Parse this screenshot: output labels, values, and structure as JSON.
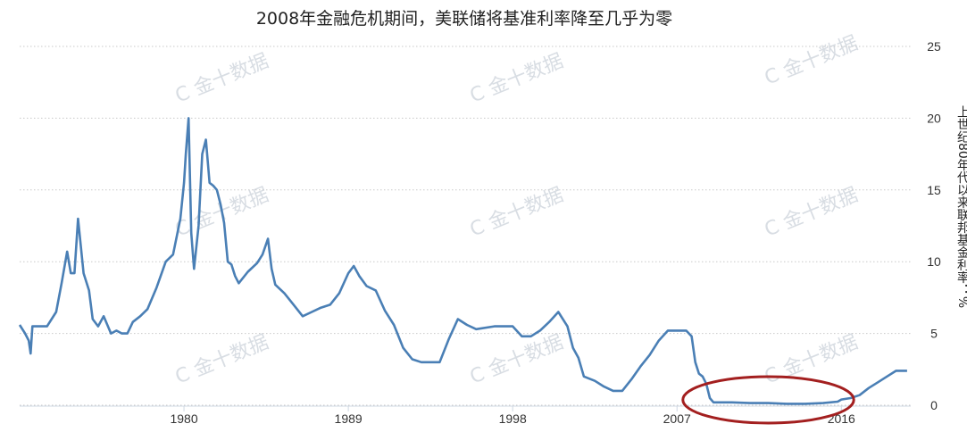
{
  "chart_data": {
    "type": "line",
    "title": "2008年金融危机期间，美联储将基准利率降至几乎为零",
    "ylabel": "上世纪80年代以来联邦基金利率：%",
    "xlabel": "",
    "ylim": [
      0,
      25
    ],
    "yticks": [
      "0",
      "5",
      "10",
      "15",
      "20",
      "25"
    ],
    "xticks": [
      "1980",
      "1989",
      "1998",
      "2007",
      "2016"
    ],
    "grid": "horizontal dotted",
    "line_color": "#4a7fb5",
    "highlight_color": "#a31f1f",
    "highlight_region": {
      "x": [
        2008.2,
        2015.8
      ],
      "y": 0.25
    },
    "watermark": "金十数据",
    "series": [
      {
        "x": [
          1971.0,
          1971.3,
          1971.5,
          1971.6,
          1971.7,
          1972.0,
          1972.5,
          1973.0,
          1973.3,
          1973.6,
          1973.8,
          1974.0,
          1974.2,
          1974.5,
          1974.8,
          1975.0,
          1975.3,
          1975.6,
          1976.0,
          1976.3,
          1976.6,
          1976.9,
          1977.2,
          1977.6,
          1978.0,
          1978.5,
          1979.0,
          1979.4,
          1979.8,
          1980.0,
          1980.1,
          1980.25,
          1980.4,
          1980.55,
          1980.8,
          1981.0,
          1981.2,
          1981.4,
          1981.6,
          1981.8,
          1982.0,
          1982.2,
          1982.4,
          1982.6,
          1982.8,
          1983.0,
          1983.5,
          1984.0,
          1984.3,
          1984.6,
          1984.8,
          1985.0,
          1985.5,
          1986.0,
          1986.5,
          1987.0,
          1987.5,
          1988.0,
          1988.5,
          1989.0,
          1989.3,
          1989.6,
          1990.0,
          1990.5,
          1991.0,
          1991.5,
          1992.0,
          1992.5,
          1993.0,
          1994.0,
          1994.5,
          1995.0,
          1995.5,
          1996.0,
          1997.0,
          1998.0,
          1998.5,
          1999.0,
          1999.5,
          2000.0,
          2000.5,
          2001.0,
          2001.3,
          2001.6,
          2001.9,
          2002.5,
          2003.0,
          2003.5,
          2004.0,
          2004.5,
          2005.0,
          2005.5,
          2006.0,
          2006.5,
          2007.0,
          2007.5,
          2007.8,
          2008.0,
          2008.2,
          2008.4,
          2008.6,
          2008.8,
          2009.0,
          2010.0,
          2011.0,
          2012.0,
          2013.0,
          2014.0,
          2015.0,
          2015.8,
          2016.0,
          2016.5,
          2017.0,
          2017.5,
          2018.0,
          2018.5,
          2019.0,
          2019.3,
          2019.6
        ],
        "values": [
          5.6,
          5.0,
          4.5,
          3.6,
          5.5,
          5.5,
          5.5,
          6.5,
          8.5,
          10.7,
          9.2,
          9.2,
          13.0,
          9.2,
          8.0,
          6.0,
          5.5,
          6.2,
          5.0,
          5.2,
          5.0,
          5.0,
          5.8,
          6.2,
          6.7,
          8.2,
          10.0,
          10.5,
          13.0,
          15.5,
          17.5,
          20.0,
          12.0,
          9.5,
          12.5,
          17.5,
          18.5,
          15.5,
          15.3,
          15.0,
          14.0,
          12.7,
          10.0,
          9.8,
          9.0,
          8.5,
          9.3,
          9.9,
          10.5,
          11.6,
          9.5,
          8.4,
          7.8,
          7.0,
          6.2,
          6.5,
          6.8,
          7.0,
          7.8,
          9.2,
          9.7,
          9.0,
          8.3,
          8.0,
          6.6,
          5.6,
          4.0,
          3.2,
          3.0,
          3.0,
          4.6,
          6.0,
          5.6,
          5.3,
          5.5,
          5.5,
          4.8,
          4.8,
          5.2,
          5.8,
          6.5,
          5.5,
          4.0,
          3.3,
          2.0,
          1.7,
          1.3,
          1.0,
          1.0,
          1.8,
          2.7,
          3.5,
          4.5,
          5.2,
          5.2,
          5.2,
          4.8,
          3.0,
          2.2,
          2.0,
          1.5,
          0.5,
          0.2,
          0.2,
          0.15,
          0.15,
          0.1,
          0.1,
          0.15,
          0.25,
          0.4,
          0.5,
          0.7,
          1.2,
          1.6,
          2.0,
          2.4,
          2.4,
          2.4
        ]
      }
    ]
  }
}
